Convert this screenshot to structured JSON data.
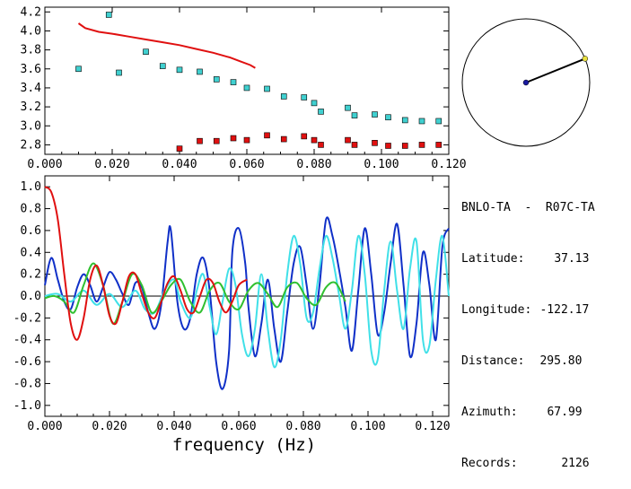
{
  "chart_data": [
    {
      "type": "scatter",
      "xlim": [
        0.0,
        0.12
      ],
      "ylim": [
        2.7,
        4.25
      ],
      "xticks": [
        "0.000",
        "0.020",
        "0.040",
        "0.060",
        "0.080",
        "0.100",
        "0.120"
      ],
      "yticks": [
        "2.8",
        "3.0",
        "3.2",
        "3.4",
        "3.6",
        "3.8",
        "4.0",
        "4.2"
      ],
      "grid": false,
      "series": [
        {
          "color": "#40d0d0",
          "marker": "square",
          "x": [
            0.01,
            0.019,
            0.022,
            0.03,
            0.035,
            0.04,
            0.046,
            0.051,
            0.056,
            0.06,
            0.066,
            0.071,
            0.077,
            0.08,
            0.082,
            0.09,
            0.092,
            0.098,
            0.102,
            0.107,
            0.112,
            0.117
          ],
          "y": [
            3.6,
            4.17,
            3.56,
            3.78,
            3.63,
            3.59,
            3.57,
            3.49,
            3.46,
            3.4,
            3.39,
            3.31,
            3.3,
            3.24,
            3.15,
            3.19,
            3.11,
            3.12,
            3.09,
            3.06,
            3.05,
            3.05
          ]
        },
        {
          "color": "#e01010",
          "marker": "square",
          "x": [
            0.04,
            0.046,
            0.051,
            0.056,
            0.06,
            0.066,
            0.071,
            0.077,
            0.08,
            0.082,
            0.09,
            0.092,
            0.098,
            0.102,
            0.107,
            0.112,
            0.117
          ],
          "y": [
            2.76,
            2.84,
            2.84,
            2.87,
            2.85,
            2.9,
            2.86,
            2.89,
            2.85,
            2.8,
            2.85,
            2.8,
            2.82,
            2.79,
            2.79,
            2.8,
            2.8
          ]
        },
        {
          "color": "#e01010",
          "marker": "line",
          "x": [
            0.01,
            0.012,
            0.016,
            0.02,
            0.025,
            0.03,
            0.035,
            0.04,
            0.045,
            0.05,
            0.055,
            0.058,
            0.061,
            0.0625
          ],
          "y": [
            4.08,
            4.03,
            3.99,
            3.97,
            3.94,
            3.91,
            3.88,
            3.85,
            3.81,
            3.77,
            3.72,
            3.68,
            3.64,
            3.61
          ]
        }
      ]
    },
    {
      "type": "line",
      "xlim": [
        0.0,
        0.125
      ],
      "ylim": [
        -1.1,
        1.1
      ],
      "xlabel": "frequency (Hz)",
      "xticks": [
        "0.000",
        "0.020",
        "0.040",
        "0.060",
        "0.080",
        "0.100",
        "0.120"
      ],
      "yticks": [
        "1.0",
        "0.8",
        "0.6",
        "0.4",
        "0.2",
        "0.0",
        "-0.2",
        "-0.4",
        "-0.6",
        "-0.8",
        "-1.0"
      ],
      "zero_line": true,
      "grid": false,
      "series": [
        {
          "color": "#1030c8",
          "x": [
            0.0,
            0.002,
            0.004,
            0.006,
            0.008,
            0.01,
            0.012,
            0.014,
            0.016,
            0.018,
            0.02,
            0.022,
            0.024,
            0.026,
            0.028,
            0.03,
            0.032,
            0.034,
            0.036,
            0.038,
            0.039,
            0.041,
            0.043,
            0.045,
            0.047,
            0.049,
            0.051,
            0.053,
            0.055,
            0.057,
            0.058,
            0.06,
            0.062,
            0.063,
            0.065,
            0.067,
            0.069,
            0.071,
            0.073,
            0.075,
            0.077,
            0.079,
            0.081,
            0.083,
            0.085,
            0.087,
            0.089,
            0.091,
            0.093,
            0.095,
            0.097,
            0.099,
            0.101,
            0.103,
            0.105,
            0.107,
            0.109,
            0.111,
            0.113,
            0.115,
            0.117,
            0.119,
            0.121,
            0.123,
            0.125
          ],
          "y": [
            0.1,
            0.35,
            0.15,
            -0.05,
            -0.12,
            0.08,
            0.2,
            0.1,
            -0.05,
            0.08,
            0.22,
            0.15,
            0.02,
            -0.08,
            0.12,
            0.08,
            -0.15,
            -0.3,
            -0.08,
            0.5,
            0.6,
            -0.05,
            -0.3,
            -0.2,
            0.2,
            0.35,
            0.05,
            -0.6,
            -0.85,
            -0.5,
            0.4,
            0.62,
            0.3,
            -0.1,
            -0.55,
            -0.25,
            0.15,
            -0.3,
            -0.6,
            -0.15,
            0.3,
            0.45,
            0.1,
            -0.3,
            0.1,
            0.7,
            0.55,
            0.25,
            -0.1,
            -0.5,
            0.05,
            0.62,
            0.2,
            -0.35,
            -0.15,
            0.3,
            0.66,
            0.1,
            -0.55,
            -0.25,
            0.4,
            0.1,
            -0.4,
            0.45,
            0.62
          ]
        },
        {
          "color": "#40e0e8",
          "x": [
            0.0,
            0.004,
            0.008,
            0.012,
            0.016,
            0.02,
            0.024,
            0.028,
            0.031,
            0.034,
            0.037,
            0.04,
            0.042,
            0.045,
            0.047,
            0.049,
            0.051,
            0.053,
            0.055,
            0.057,
            0.059,
            0.061,
            0.063,
            0.065,
            0.067,
            0.069,
            0.071,
            0.073,
            0.075,
            0.077,
            0.079,
            0.081,
            0.083,
            0.085,
            0.087,
            0.089,
            0.091,
            0.093,
            0.095,
            0.097,
            0.099,
            0.101,
            0.103,
            0.105,
            0.107,
            0.109,
            0.111,
            0.113,
            0.115,
            0.117,
            0.119,
            0.121,
            0.123,
            0.125
          ],
          "y": [
            0.0,
            0.02,
            -0.05,
            0.05,
            -0.08,
            0.02,
            -0.1,
            0.05,
            -0.12,
            -0.15,
            0.05,
            0.15,
            -0.05,
            -0.2,
            0.05,
            0.2,
            -0.1,
            -0.35,
            -0.05,
            0.25,
            0.1,
            -0.35,
            -0.55,
            -0.3,
            0.2,
            -0.3,
            -0.65,
            -0.4,
            0.2,
            0.55,
            0.3,
            -0.2,
            -0.15,
            0.25,
            0.55,
            0.35,
            0.02,
            -0.3,
            0.05,
            0.55,
            0.2,
            -0.5,
            -0.58,
            0.05,
            0.5,
            0.05,
            -0.3,
            0.25,
            0.5,
            -0.4,
            -0.45,
            0.15,
            0.55,
            0.0
          ]
        },
        {
          "color": "#30c030",
          "x": [
            0.0,
            0.003,
            0.006,
            0.009,
            0.012,
            0.015,
            0.018,
            0.021,
            0.024,
            0.027,
            0.03,
            0.033,
            0.036,
            0.039,
            0.042,
            0.045,
            0.048,
            0.051,
            0.054,
            0.057,
            0.06,
            0.063,
            0.066,
            0.069,
            0.072,
            0.075,
            0.078,
            0.081,
            0.084,
            0.087,
            0.09,
            0.093
          ],
          "y": [
            -0.02,
            0.0,
            -0.05,
            -0.15,
            0.1,
            0.3,
            0.1,
            -0.25,
            -0.05,
            0.2,
            0.1,
            -0.15,
            -0.05,
            0.1,
            0.15,
            -0.05,
            -0.15,
            0.05,
            0.12,
            -0.05,
            -0.12,
            0.05,
            0.12,
            0.02,
            -0.1,
            0.08,
            0.12,
            -0.02,
            -0.08,
            0.08,
            0.12,
            -0.05
          ]
        },
        {
          "color": "#e01010",
          "x": [
            0.0,
            0.002,
            0.004,
            0.006,
            0.008,
            0.01,
            0.012,
            0.014,
            0.016,
            0.018,
            0.02,
            0.022,
            0.024,
            0.026,
            0.028,
            0.03,
            0.032,
            0.034,
            0.036,
            0.038,
            0.04,
            0.042,
            0.044,
            0.046,
            0.048,
            0.05,
            0.052,
            0.054,
            0.056,
            0.058,
            0.06,
            0.0625
          ],
          "y": [
            1.0,
            0.95,
            0.7,
            0.2,
            -0.25,
            -0.4,
            -0.2,
            0.15,
            0.28,
            0.1,
            -0.18,
            -0.25,
            -0.05,
            0.18,
            0.2,
            0.02,
            -0.15,
            -0.2,
            -0.05,
            0.12,
            0.18,
            0.05,
            -0.12,
            -0.15,
            0.0,
            0.15,
            0.12,
            -0.05,
            -0.15,
            -0.05,
            0.1,
            0.15
          ]
        }
      ]
    }
  ],
  "station": {
    "title": "BNLO-TA  -  R07C-TA",
    "rows": [
      {
        "label": "Latitude:",
        "value": "37.13"
      },
      {
        "label": "Longitude:",
        "value": "-122.17"
      },
      {
        "label": "Distance:",
        "value": "295.80"
      },
      {
        "label": "Azimuth:",
        "value": "67.99"
      },
      {
        "label": "Records:",
        "value": "2126"
      }
    ],
    "azimuth_deg": 67.99
  }
}
